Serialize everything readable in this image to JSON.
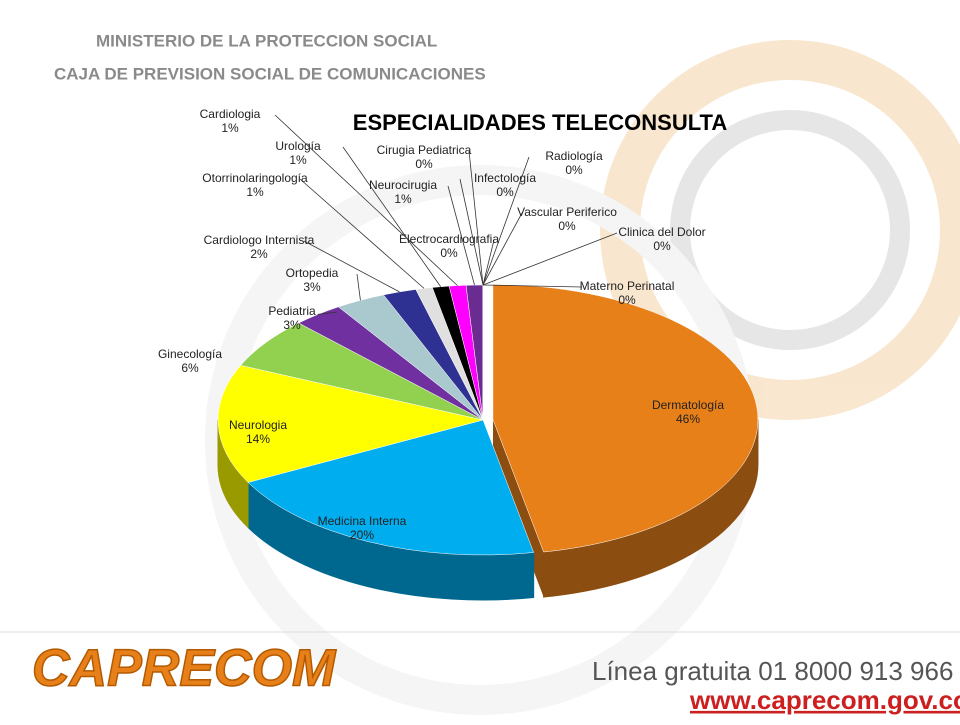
{
  "header": {
    "line1": "MINISTERIO DE LA PROTECCION SOCIAL",
    "line2": "CAJA DE PREVISION SOCIAL DE COMUNICACIONES"
  },
  "footer": {
    "logo": "CAPRECOM",
    "phone": "Línea gratuita 01 8000 913 966",
    "url": "www.caprecom.gov.co"
  },
  "chart_data": {
    "type": "pie",
    "title": "ESPECIALIDADES  TELECONSULTA",
    "categories": [
      "Dermatología",
      "Medicina Interna",
      "Neurologia",
      "Ginecología",
      "Pediatria",
      "Ortopedia",
      "Cardiologo Internista",
      "Otorrinolaringología",
      "Urología",
      "Cardiologia",
      "Neurocirugia",
      "Cirugia Pediatrica",
      "Electrocardiografia",
      "Infectología",
      "Radiología",
      "Vascular Periferico",
      "Clinica del Dolor",
      "Materno Perinatal"
    ],
    "values": [
      46,
      20,
      14,
      6,
      3,
      3,
      2,
      1,
      1,
      1,
      1,
      0,
      0,
      0,
      0,
      0,
      0,
      0
    ],
    "value_labels": [
      "46%",
      "20%",
      "14%",
      "6%",
      "3%",
      "3%",
      "2%",
      "1%",
      "1%",
      "1%",
      "1%",
      "0%",
      "0%",
      "0%",
      "0%",
      "0%",
      "0%",
      "0%"
    ],
    "colors": [
      "#e8801a",
      "#00aeef",
      "#ffff00",
      "#92d050",
      "#7030a0",
      "#a9c9cf",
      "#2e3192",
      "#e0e0e0",
      "#000000",
      "#ff00ff",
      "#6a2c91",
      "#8db4e2",
      "#4f81bd",
      "#c0504d",
      "#9bbb59",
      "#8064a2",
      "#4bacc6",
      "#f79646"
    ]
  }
}
